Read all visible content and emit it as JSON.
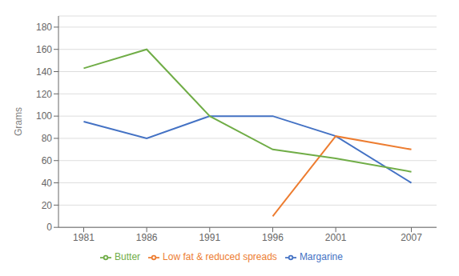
{
  "chart_data": {
    "type": "line",
    "x": [
      1981,
      1986,
      1991,
      1996,
      2001,
      2007
    ],
    "series": [
      {
        "name": "Margarine",
        "color": "#4472C4",
        "values": [
          95,
          80,
          100,
          100,
          82,
          40
        ]
      },
      {
        "name": "Low fat & reduced spreads",
        "color": "#ED7D31",
        "values": [
          null,
          null,
          null,
          10,
          82,
          70
        ]
      },
      {
        "name": "Butter",
        "color": "#70AD47",
        "values": [
          143,
          160,
          100,
          70,
          62,
          50
        ]
      }
    ],
    "ylabel": "Grams",
    "ylim": [
      0,
      190
    ],
    "yticks": [
      0,
      20,
      40,
      60,
      80,
      100,
      120,
      140,
      160,
      180
    ],
    "xlim": [
      1979,
      2009
    ],
    "xticks": [
      1981,
      1986,
      1991,
      1996,
      2001,
      2007
    ],
    "grid": true,
    "legend": "bottom"
  }
}
